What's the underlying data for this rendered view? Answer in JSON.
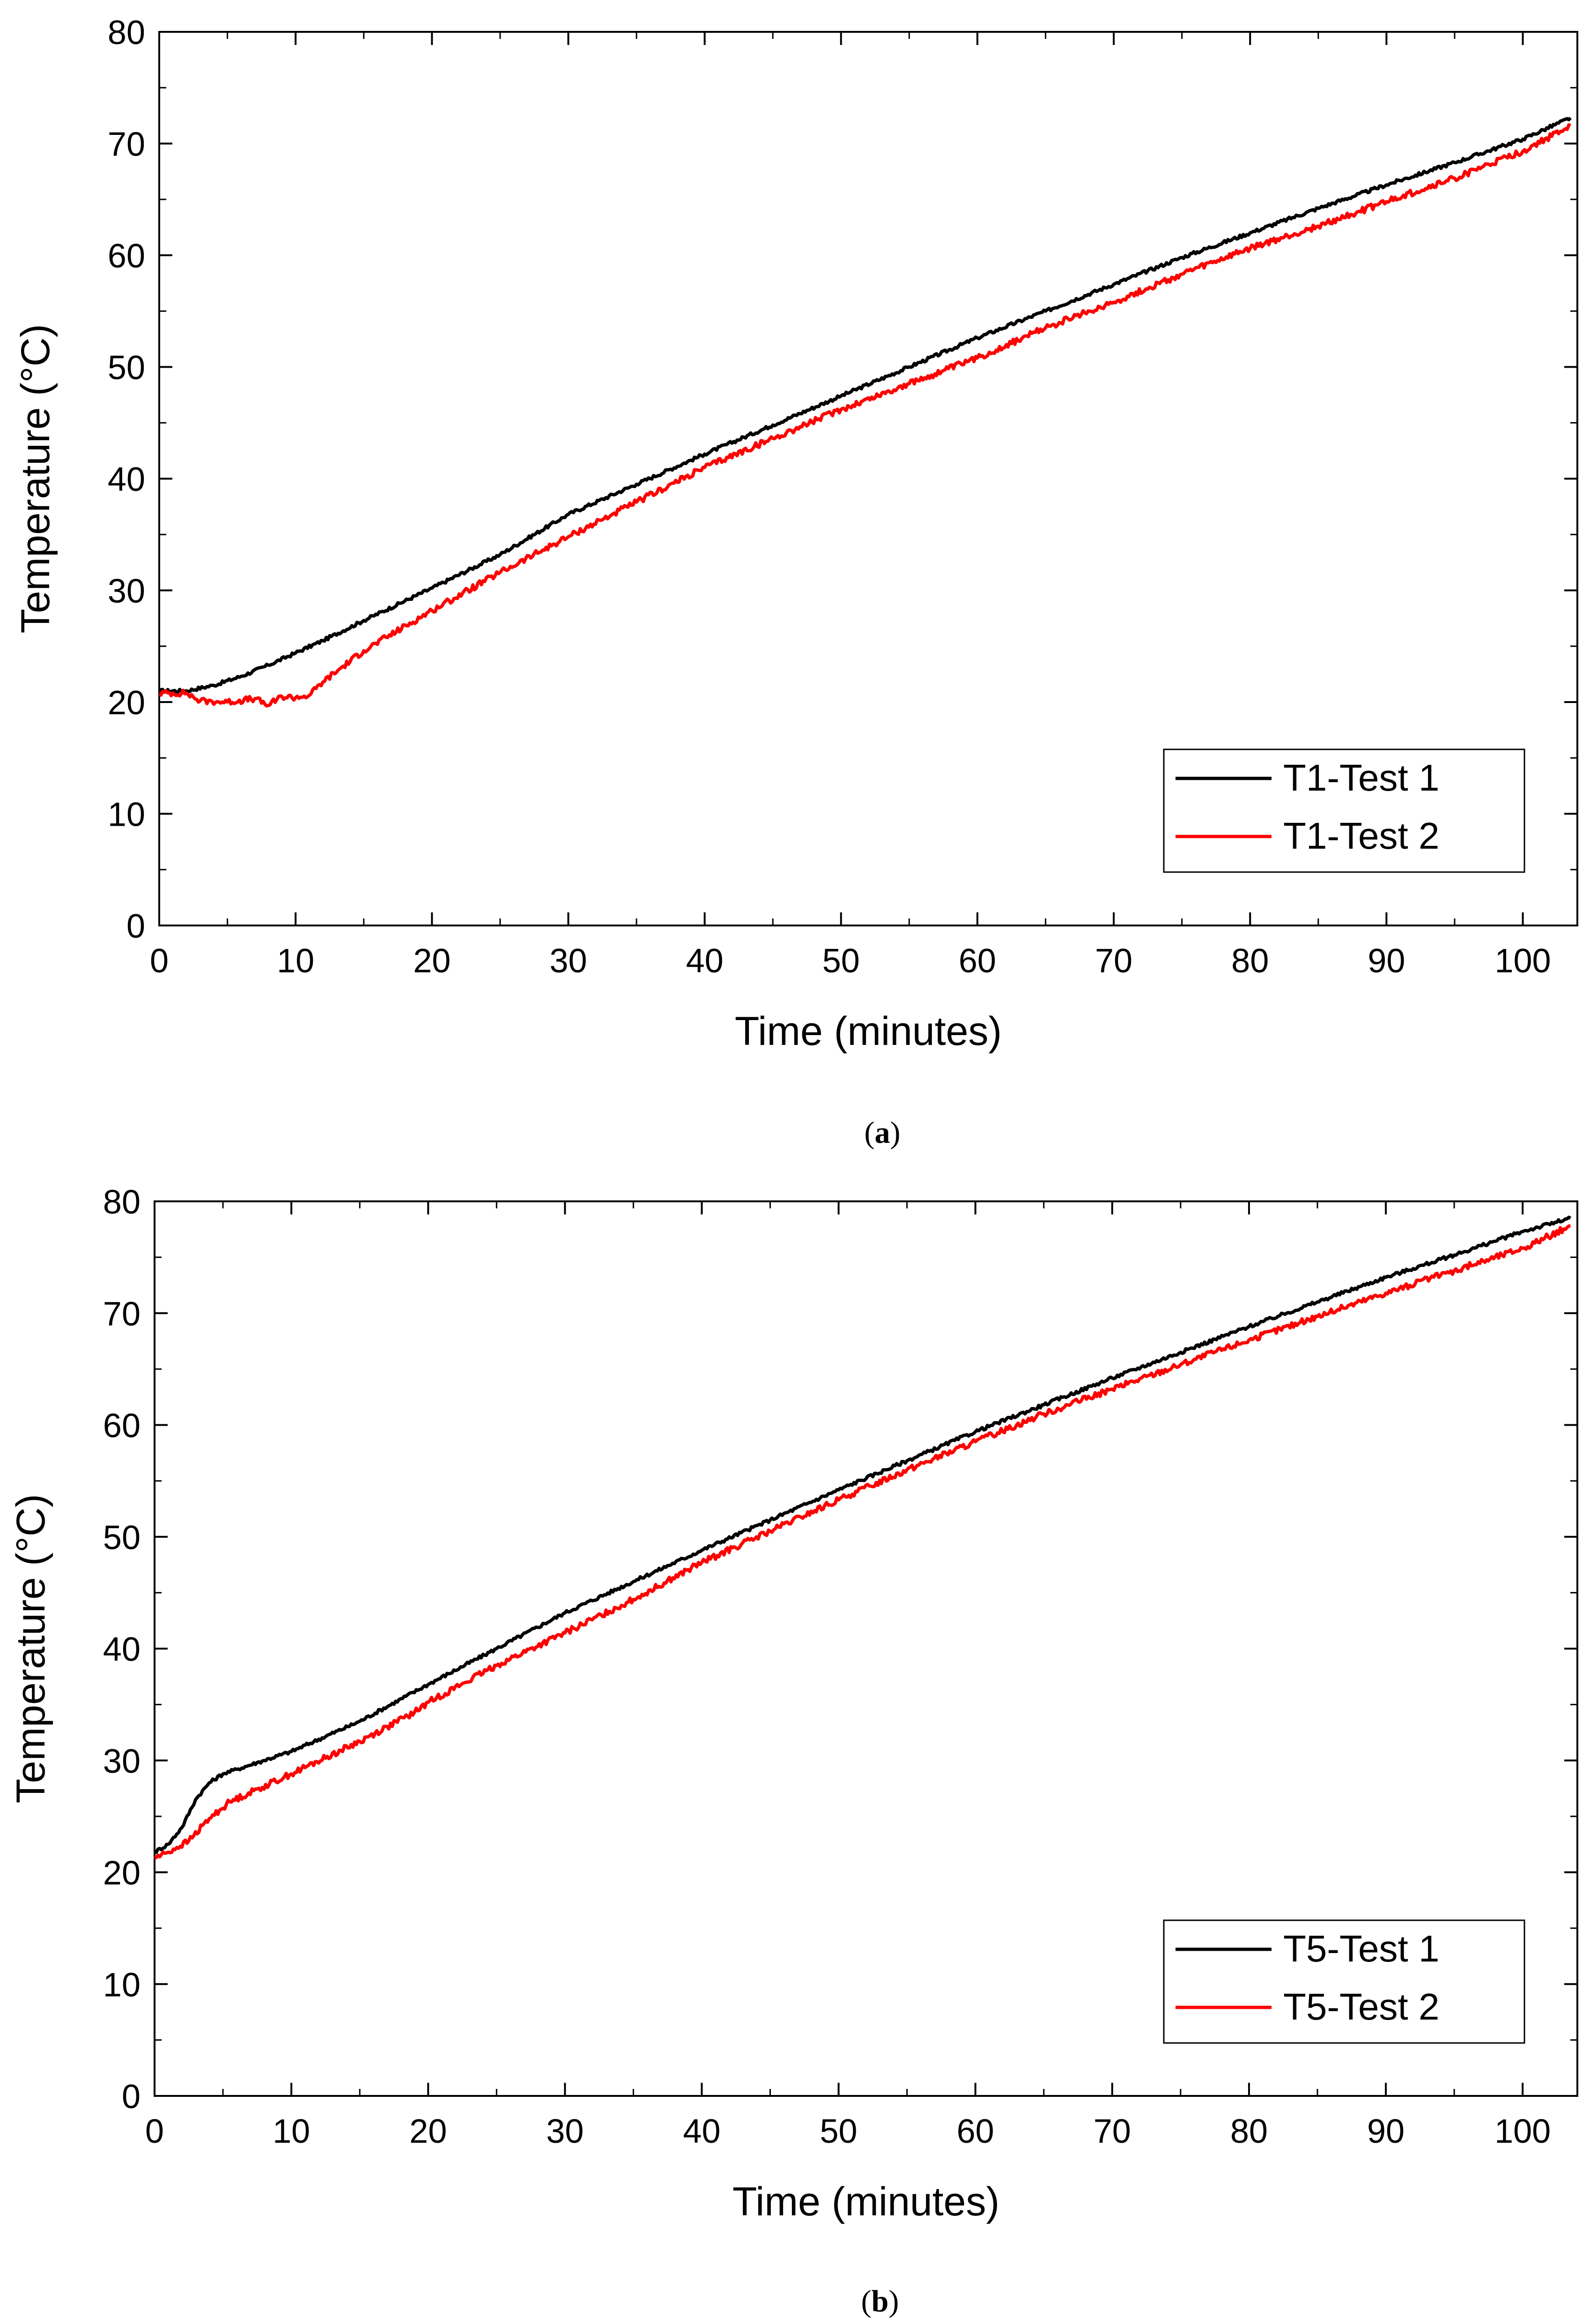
{
  "chart_data": [
    {
      "type": "line",
      "caption_letter": "a",
      "xlabel": "Time (minutes)",
      "ylabel": "Temperature (°C)",
      "xlim": [
        0,
        104
      ],
      "ylim": [
        0,
        80
      ],
      "xticks": [
        0,
        10,
        20,
        30,
        40,
        50,
        60,
        70,
        80,
        90,
        100
      ],
      "yticks": [
        0,
        10,
        20,
        30,
        40,
        50,
        60,
        70,
        80
      ],
      "legend_position": "bottom-right",
      "series": [
        {
          "name": "T1-Test 1",
          "color": "#000000",
          "x": [
            0,
            2,
            4,
            6,
            8,
            10,
            12,
            15,
            20,
            25,
            30,
            35,
            40,
            45,
            50,
            55,
            60,
            65,
            70,
            75,
            80,
            85,
            90,
            95,
            100,
            103.5
          ],
          "y": [
            21.0,
            21.0,
            21.5,
            22.3,
            23.3,
            24.4,
            25.5,
            27.3,
            30.2,
            33.2,
            36.8,
            39.5,
            42.2,
            44.8,
            47.4,
            50.0,
            52.6,
            55.0,
            57.4,
            59.8,
            62.0,
            64.2,
            66.3,
            68.3,
            70.4,
            72.3
          ]
        },
        {
          "name": "T1-Test 2",
          "color": "#ff0000",
          "x": [
            0,
            2,
            3,
            5,
            7,
            8,
            9,
            10,
            11,
            12,
            15,
            20,
            25,
            30,
            35,
            40,
            45,
            50,
            55,
            60,
            65,
            70,
            75,
            80,
            85,
            90,
            95,
            100,
            103.5
          ],
          "y": [
            20.8,
            20.8,
            20.1,
            20.0,
            20.3,
            19.7,
            20.5,
            20.4,
            20.6,
            21.8,
            24.6,
            28.2,
            31.6,
            34.8,
            37.9,
            41.0,
            43.6,
            46.2,
            48.5,
            50.8,
            53.5,
            55.8,
            58.3,
            60.6,
            62.6,
            64.8,
            66.9,
            69.3,
            71.6
          ]
        }
      ]
    },
    {
      "type": "line",
      "caption_letter": "b",
      "xlabel": "Time (minutes)",
      "ylabel": "Temperature (°C)",
      "xlim": [
        0,
        104
      ],
      "ylim": [
        0,
        80
      ],
      "xticks": [
        0,
        10,
        20,
        30,
        40,
        50,
        60,
        70,
        80,
        90,
        100
      ],
      "yticks": [
        0,
        10,
        20,
        30,
        40,
        50,
        60,
        70,
        80
      ],
      "legend_position": "bottom-right",
      "series": [
        {
          "name": "T5-Test 1",
          "color": "#000000",
          "x": [
            0,
            1,
            2,
            3,
            4,
            5,
            6,
            8,
            10,
            15,
            20,
            25,
            30,
            35,
            40,
            45,
            50,
            55,
            60,
            65,
            70,
            75,
            80,
            85,
            90,
            95,
            100,
            103.5
          ],
          "y": [
            21.8,
            22.5,
            24.0,
            26.5,
            28.0,
            28.8,
            29.2,
            30.0,
            30.8,
            33.5,
            36.8,
            40.0,
            43.2,
            46.0,
            48.8,
            51.5,
            54.2,
            56.8,
            59.4,
            61.8,
            64.2,
            66.5,
            68.8,
            71.0,
            73.2,
            75.2,
            77.3,
            78.5
          ]
        },
        {
          "name": "T5-Test 2",
          "color": "#ff0000",
          "x": [
            0,
            1,
            2.5,
            4,
            5.5,
            10,
            15,
            19,
            20,
            25,
            30,
            35,
            40,
            45,
            50,
            55,
            60,
            65,
            70,
            75,
            80,
            85,
            90,
            95,
            100,
            103.5
          ],
          "y": [
            21.3,
            21.8,
            22.8,
            24.8,
            26.3,
            28.8,
            31.7,
            34.3,
            35.2,
            38.5,
            41.4,
            44.4,
            47.7,
            50.5,
            53.3,
            56.0,
            58.5,
            61.0,
            63.2,
            65.4,
            67.6,
            69.7,
            71.8,
            73.8,
            75.8,
            77.8
          ]
        }
      ]
    }
  ]
}
